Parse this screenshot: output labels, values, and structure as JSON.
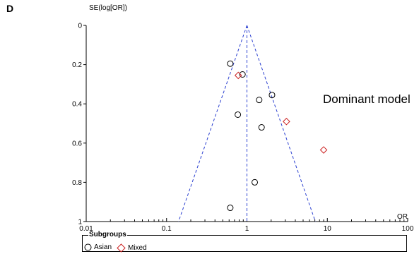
{
  "panel_label": "D",
  "annotation": "Dominant model",
  "chart_data": {
    "type": "scatter",
    "title": "",
    "xlabel": "OR",
    "ylabel": "SE(log[OR])",
    "x_scale": "log",
    "xlim": [
      0.01,
      100
    ],
    "ylim": [
      0,
      1
    ],
    "y_inverted": true,
    "x_ticks": [
      0.01,
      0.1,
      1,
      10,
      100
    ],
    "x_tick_labels": [
      "0.01",
      "0.1",
      "1",
      "10",
      "100"
    ],
    "y_ticks": [
      0,
      0.2,
      0.4,
      0.6,
      0.8,
      1
    ],
    "y_tick_labels": [
      "0",
      "0.2",
      "0.4",
      "0.6",
      "0.8",
      "1"
    ],
    "pooled_or": 1,
    "funnel_lines": "95% pseudo-confidence limits (dashed)",
    "line_color": "#2a3fd0",
    "series": [
      {
        "name": "Asian",
        "marker": "circle",
        "color": "#000000",
        "points": [
          {
            "x": 0.62,
            "y": 0.195
          },
          {
            "x": 0.88,
            "y": 0.25
          },
          {
            "x": 2.05,
            "y": 0.355
          },
          {
            "x": 1.42,
            "y": 0.38
          },
          {
            "x": 0.77,
            "y": 0.455
          },
          {
            "x": 1.52,
            "y": 0.52
          },
          {
            "x": 1.25,
            "y": 0.8
          },
          {
            "x": 0.62,
            "y": 0.93
          }
        ]
      },
      {
        "name": "Mixed",
        "marker": "diamond",
        "color": "#cc2222",
        "points": [
          {
            "x": 0.78,
            "y": 0.255
          },
          {
            "x": 3.1,
            "y": 0.49
          },
          {
            "x": 9.0,
            "y": 0.635
          }
        ]
      }
    ]
  },
  "legend": {
    "title": "Subgroups",
    "items": [
      "Asian",
      "Mixed"
    ]
  }
}
